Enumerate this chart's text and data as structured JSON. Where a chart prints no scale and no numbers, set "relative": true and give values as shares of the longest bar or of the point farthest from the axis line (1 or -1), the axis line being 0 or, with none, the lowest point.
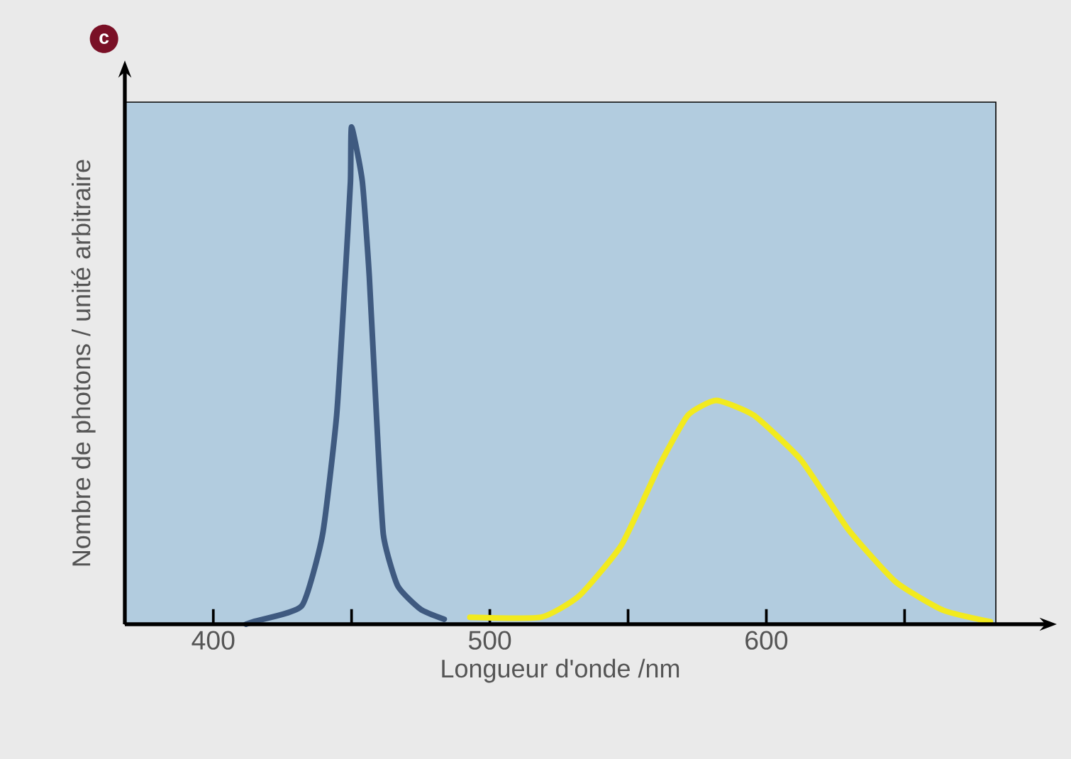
{
  "chart_data": {
    "type": "line",
    "relative": true,
    "xlabel": "Longueur d'onde /nm",
    "ylabel": "Nombre de photons / unité arbitraire",
    "annotations": [
      "c"
    ],
    "xlim": [
      368,
      683
    ],
    "xticks": [
      400,
      {
        "value": 450,
        "label": null
      },
      500,
      {
        "value": 550,
        "label": null
      },
      600,
      {
        "value": 650,
        "label": null
      }
    ],
    "marker": "none",
    "line_style": "solid",
    "grid": false,
    "series": [
      {
        "color": "#3f5a80",
        "x": [
          411.8,
          415,
          432,
          439.5,
          444.6,
          447.7,
          449.6,
          450,
          453.9,
          456.4,
          459,
          461.5,
          466.7,
          475,
          483.5
        ],
        "values": [
          0,
          0.006,
          0.037,
          0.18,
          0.42,
          0.7,
          0.89,
          1,
          0.89,
          0.7,
          0.42,
          0.18,
          0.077,
          0.03,
          0.01
        ]
      },
      {
        "color": "#f2ea1e",
        "x": [
          492.8,
          518.5,
          532.3,
          547.7,
          561.4,
          571.6,
          581.9,
          595.5,
          612.6,
          629.7,
          646.8,
          664,
          681
        ],
        "values": [
          0.014,
          0.014,
          0.057,
          0.16,
          0.32,
          0.42,
          0.45,
          0.42,
          0.33,
          0.19,
          0.085,
          0.028,
          0.005
        ]
      }
    ]
  }
}
